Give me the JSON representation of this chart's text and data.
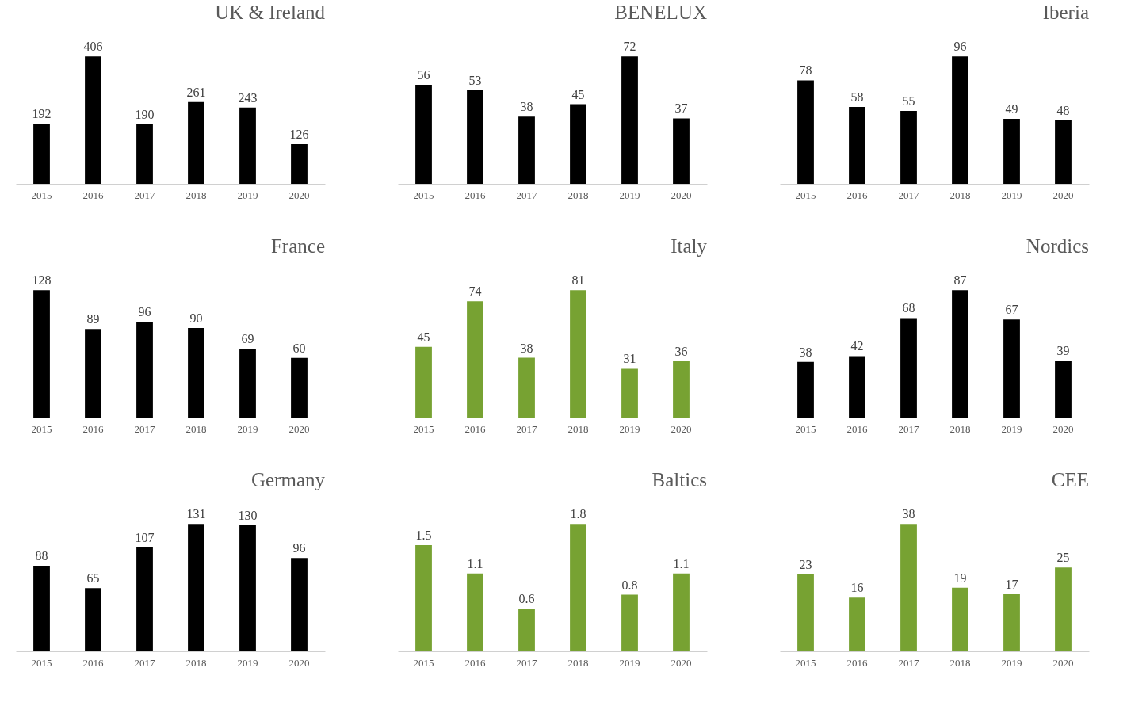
{
  "chart_data": [
    {
      "type": "bar",
      "title": "UK & Ireland",
      "categories": [
        "2015",
        "2016",
        "2017",
        "2018",
        "2019",
        "2020"
      ],
      "values": [
        192,
        406,
        190,
        261,
        243,
        126
      ],
      "color": "#000000",
      "data_labels": true
    },
    {
      "type": "bar",
      "title": "BENELUX",
      "categories": [
        "2015",
        "2016",
        "2017",
        "2018",
        "2019",
        "2020"
      ],
      "values": [
        56,
        53,
        38,
        45,
        72,
        37
      ],
      "color": "#000000",
      "data_labels": true
    },
    {
      "type": "bar",
      "title": "Iberia",
      "categories": [
        "2015",
        "2016",
        "2017",
        "2018",
        "2019",
        "2020"
      ],
      "values": [
        78,
        58,
        55,
        96,
        49,
        48
      ],
      "color": "#000000",
      "data_labels": true
    },
    {
      "type": "bar",
      "title": "France",
      "categories": [
        "2015",
        "2016",
        "2017",
        "2018",
        "2019",
        "2020"
      ],
      "values": [
        128,
        89,
        96,
        90,
        69,
        60
      ],
      "color": "#000000",
      "data_labels": true
    },
    {
      "type": "bar",
      "title": "Italy",
      "categories": [
        "2015",
        "2016",
        "2017",
        "2018",
        "2019",
        "2020"
      ],
      "values": [
        45,
        74,
        38,
        81,
        31,
        36
      ],
      "color": "#77a232",
      "data_labels": true
    },
    {
      "type": "bar",
      "title": "Nordics",
      "categories": [
        "2015",
        "2016",
        "2017",
        "2018",
        "2019",
        "2020"
      ],
      "values": [
        38,
        42,
        68,
        87,
        67,
        39
      ],
      "color": "#000000",
      "data_labels": true
    },
    {
      "type": "bar",
      "title": "Germany",
      "categories": [
        "2015",
        "2016",
        "2017",
        "2018",
        "2019",
        "2020"
      ],
      "values": [
        88,
        65,
        107,
        131,
        130,
        96
      ],
      "color": "#000000",
      "data_labels": true
    },
    {
      "type": "bar",
      "title": "Baltics",
      "categories": [
        "2015",
        "2016",
        "2017",
        "2018",
        "2019",
        "2020"
      ],
      "values": [
        1.5,
        1.1,
        0.6,
        1.8,
        0.8,
        1.1
      ],
      "color": "#77a232",
      "data_labels": true
    },
    {
      "type": "bar",
      "title": "CEE",
      "categories": [
        "2015",
        "2016",
        "2017",
        "2018",
        "2019",
        "2020"
      ],
      "values": [
        23,
        16,
        38,
        19,
        17,
        25
      ],
      "color": "#77a232",
      "data_labels": true
    }
  ]
}
